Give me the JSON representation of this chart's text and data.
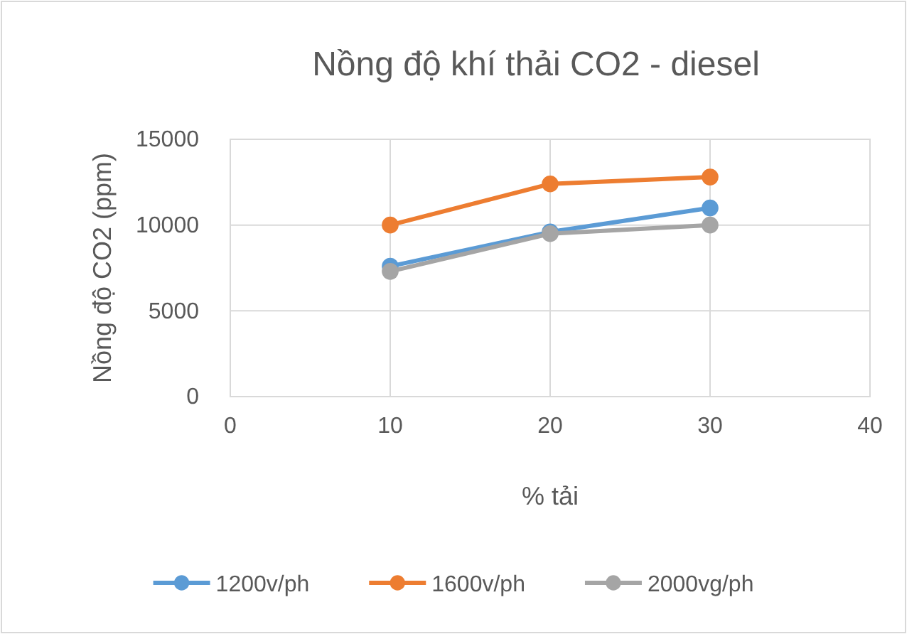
{
  "chart_data": {
    "type": "line",
    "title": "Nồng độ khí thải CO2 - diesel",
    "xlabel": "% tải",
    "ylabel": "Nồng độ CO2 (ppm)",
    "x": [
      10,
      20,
      30
    ],
    "series": [
      {
        "name": "1200v/ph",
        "color": "#5b9bd5",
        "values": [
          7600,
          9600,
          11000
        ]
      },
      {
        "name": "1600v/ph",
        "color": "#ed7d31",
        "values": [
          10000,
          12400,
          12800
        ]
      },
      {
        "name": "2000vg/ph",
        "color": "#a5a5a5",
        "values": [
          7300,
          9500,
          10000
        ]
      }
    ],
    "xlim": [
      0,
      40
    ],
    "xticks": [
      0,
      10,
      20,
      30,
      40
    ],
    "ylim": [
      0,
      15000
    ],
    "yticks": [
      0,
      5000,
      10000,
      15000
    ],
    "grid": true,
    "legend": "bottom",
    "marker": "circle",
    "line_style": "solid"
  }
}
